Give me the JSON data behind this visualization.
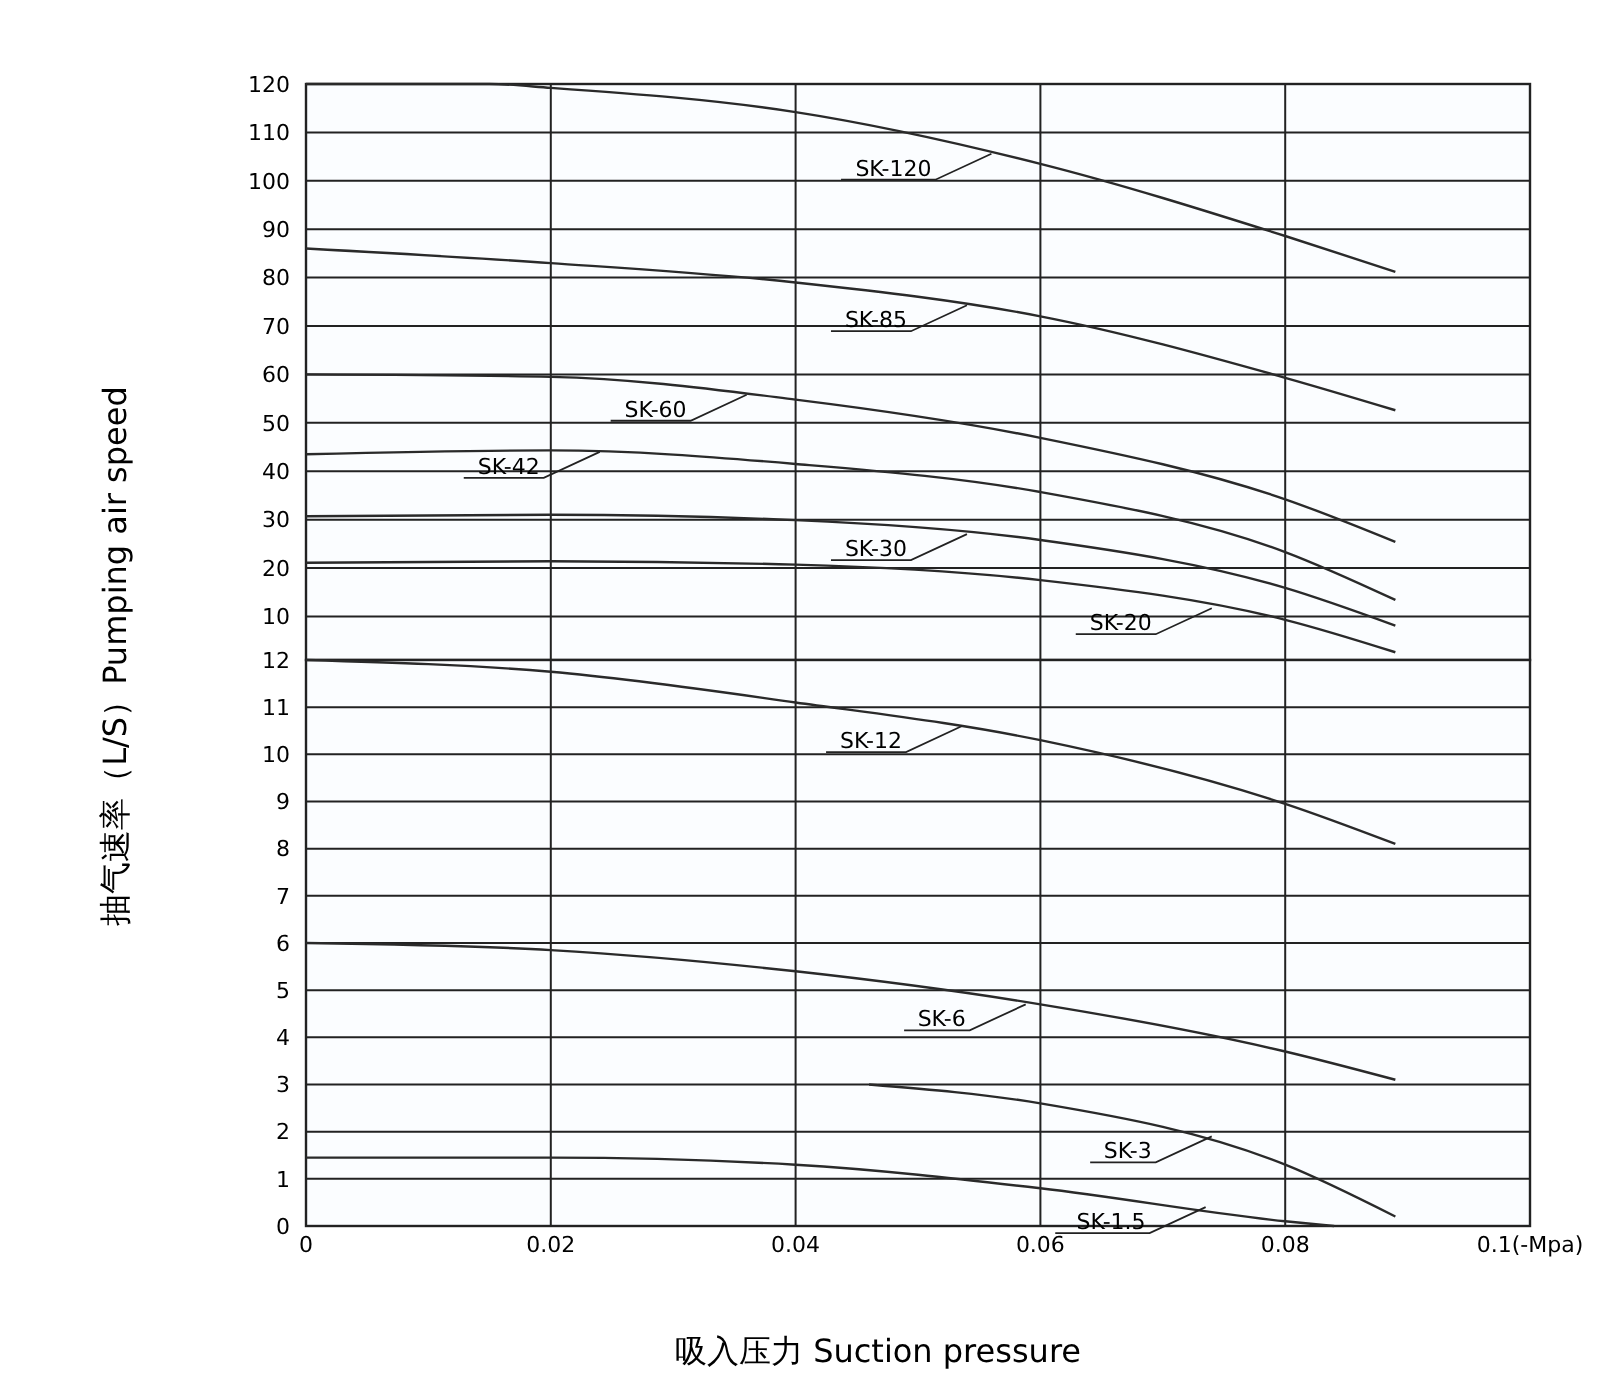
{
  "chart_data": [
    {
      "type": "line",
      "ylabel": "抽气速率（L/S）Pumping air speed",
      "xlim": [
        0,
        0.1
      ],
      "xticks": [
        0,
        0.02,
        0.04,
        0.06,
        0.08
      ],
      "ylim": [
        1,
        120
      ],
      "yticks": [
        120,
        110,
        100,
        90,
        80,
        70,
        60,
        50,
        40,
        30,
        20,
        10
      ],
      "grid": true,
      "tick_labels": "y",
      "marker": "none",
      "line_style": "solid",
      "series": [
        {
          "color": "#2a2a2a",
          "x": [
            0,
            0.015,
            0.02,
            0.04,
            0.06,
            0.08,
            0.089
          ],
          "values": [
            120,
            120,
            119.2,
            114.2,
            103.5,
            88.6,
            81.2
          ]
        },
        {
          "color": "#2a2a2a",
          "x": [
            0,
            0.02,
            0.04,
            0.06,
            0.08,
            0.089
          ],
          "values": [
            86,
            83,
            79,
            72,
            59.3,
            52.6
          ]
        },
        {
          "color": "#2a2a2a",
          "x": [
            0,
            0.02,
            0.04,
            0.06,
            0.08,
            0.089
          ],
          "values": [
            60,
            59.5,
            54.8,
            46.9,
            34.2,
            25.4
          ]
        },
        {
          "color": "#2a2a2a",
          "x": [
            0,
            0.02,
            0.04,
            0.06,
            0.08,
            0.089
          ],
          "values": [
            43.5,
            44.3,
            41.5,
            35.7,
            23.3,
            13.4
          ]
        },
        {
          "color": "#2a2a2a",
          "x": [
            0,
            0.02,
            0.04,
            0.06,
            0.08,
            0.089
          ],
          "values": [
            30.7,
            31,
            29.9,
            25.8,
            15.9,
            8.1
          ]
        },
        {
          "color": "#2a2a2a",
          "x": [
            0,
            0.02,
            0.04,
            0.06,
            0.08,
            0.089
          ],
          "values": [
            21.1,
            21.4,
            20.7,
            17.5,
            9.3,
            2.6
          ]
        }
      ],
      "annotations": [
        {
          "text": "SK-120",
          "x": 0.056,
          "y": 105.6
        },
        {
          "text": "SK-85",
          "x": 0.054,
          "y": 74.3
        },
        {
          "text": "SK-60",
          "x": 0.036,
          "y": 55.8
        },
        {
          "text": "SK-42",
          "x": 0.024,
          "y": 44
        },
        {
          "text": "SK-30",
          "x": 0.054,
          "y": 27
        },
        {
          "text": "SK-20",
          "x": 0.074,
          "y": 11.7
        }
      ]
    },
    {
      "type": "line",
      "xlabel": "吸入压力 Suction pressure",
      "xlim": [
        0,
        0.1
      ],
      "xticks": [
        0,
        0.02,
        0.04,
        0.06,
        0.08,
        {
          "value": 0.1,
          "label": "0.1(-Mpa)"
        }
      ],
      "ylim": [
        0,
        12
      ],
      "yticks": [
        12,
        11,
        10,
        9,
        8,
        7,
        6,
        5,
        4,
        3,
        2,
        1,
        0
      ],
      "grid": true,
      "marker": "none",
      "line_style": "solid",
      "series": [
        {
          "color": "#2a2a2a",
          "x": [
            0,
            0.02,
            0.04,
            0.06,
            0.08,
            0.089
          ],
          "values": [
            12,
            11.75,
            11.1,
            10.3,
            8.95,
            8.1
          ]
        },
        {
          "color": "#2a2a2a",
          "x": [
            0,
            0.02,
            0.04,
            0.06,
            0.08,
            0.089
          ],
          "values": [
            6,
            5.85,
            5.4,
            4.7,
            3.7,
            3.1
          ]
        },
        {
          "color": "#2a2a2a",
          "x": [
            0.046,
            0.06,
            0.08,
            0.089
          ],
          "values": [
            3,
            2.6,
            1.3,
            0.2
          ]
        },
        {
          "color": "#2a2a2a",
          "x": [
            0,
            0.02,
            0.04,
            0.06,
            0.08,
            0.084
          ],
          "values": [
            1.45,
            1.45,
            1.3,
            0.8,
            0.1,
            0
          ]
        }
      ],
      "annotations": [
        {
          "text": "SK-12",
          "x": 0.0536,
          "y": 10.6
        },
        {
          "text": "SK-6",
          "x": 0.0588,
          "y": 4.7
        },
        {
          "text": "SK-3",
          "x": 0.074,
          "y": 1.9
        },
        {
          "text": "SK-1.5",
          "x": 0.0735,
          "y": 0.4
        }
      ]
    }
  ]
}
